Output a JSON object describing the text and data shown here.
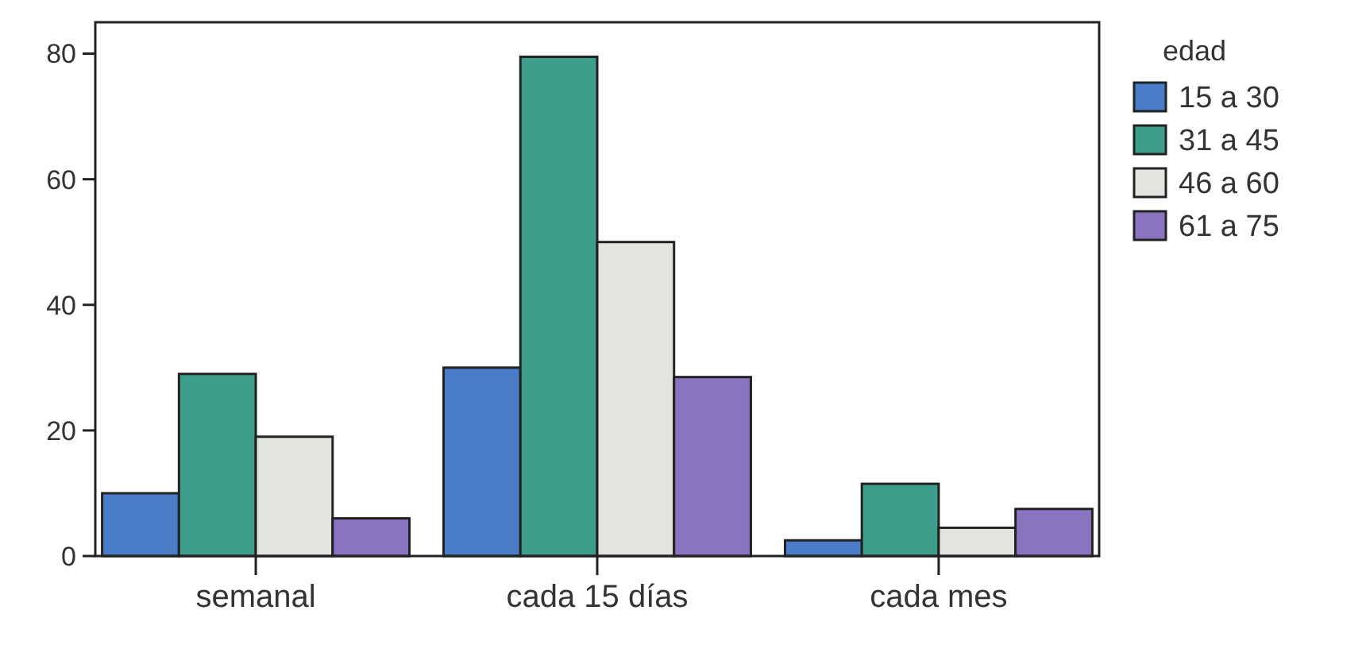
{
  "chart_data": {
    "type": "bar",
    "categories": [
      "semanal",
      "cada 15 días",
      "cada mes"
    ],
    "legend_title": "edad",
    "legend": "right",
    "ylim": [
      0,
      85
    ],
    "yticks": [
      0,
      20,
      40,
      60,
      80
    ],
    "series": [
      {
        "name": "15 a 30",
        "color": "#4a7cc8",
        "values": [
          10,
          30,
          2.5
        ]
      },
      {
        "name": "31 a 45",
        "color": "#3e9e8c",
        "values": [
          29,
          79.5,
          11.5
        ]
      },
      {
        "name": "46 a 60",
        "color": "#e2e4df",
        "values": [
          19,
          50,
          4.5
        ]
      },
      {
        "name": "61 a 75",
        "color": "#8a73c0",
        "values": [
          6,
          28.5,
          7.5
        ]
      }
    ]
  }
}
